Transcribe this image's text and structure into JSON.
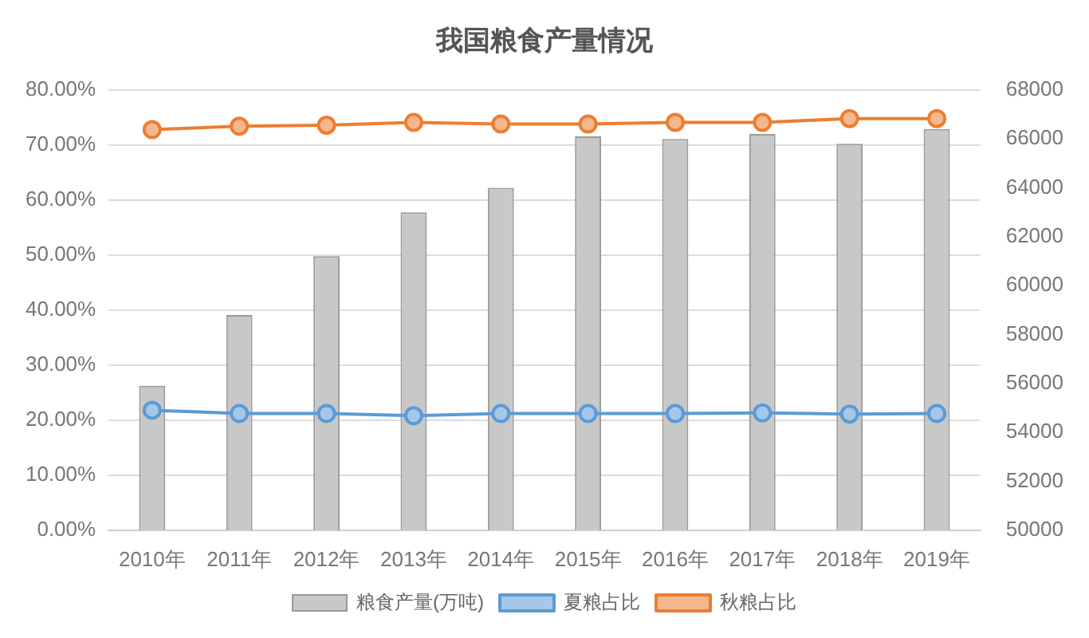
{
  "chart_data": {
    "type": "bar",
    "title": "我国粮食产量情况",
    "categories": [
      "2010年",
      "2011年",
      "2012年",
      "2013年",
      "2014年",
      "2015年",
      "2016年",
      "2017年",
      "2018年",
      "2019年"
    ],
    "series": [
      {
        "name": "粮食产量(万吨)",
        "axis": "y2",
        "color": "#c8c8c8",
        "values": [
          55900,
          58800,
          61200,
          63000,
          64000,
          66100,
          66000,
          66200,
          65800,
          66400
        ]
      },
      {
        "name": "夏粮占比",
        "type": "line",
        "color": "#5b9bd5",
        "values": [
          21.8,
          21.2,
          21.2,
          20.8,
          21.2,
          21.2,
          21.2,
          21.3,
          21.1,
          21.2
        ]
      },
      {
        "name": "秋粮占比",
        "type": "line",
        "color": "#ed7d31",
        "values": [
          72.8,
          73.4,
          73.6,
          74.1,
          73.8,
          73.8,
          74.1,
          74.1,
          74.8,
          74.8
        ]
      }
    ],
    "ylim": [
      0,
      80
    ],
    "yticks": [
      {
        "value": 0,
        "label": "0.00%"
      },
      {
        "value": 10,
        "label": "10.00%"
      },
      {
        "value": 20,
        "label": "20.00%"
      },
      {
        "value": 30,
        "label": "30.00%"
      },
      {
        "value": 40,
        "label": "40.00%"
      },
      {
        "value": 50,
        "label": "50.00%"
      },
      {
        "value": 60,
        "label": "60.00%"
      },
      {
        "value": 70,
        "label": "70.00%"
      },
      {
        "value": 80,
        "label": "80.00%"
      }
    ],
    "y2lim": [
      50000,
      68000
    ],
    "y2ticks": [
      50000,
      52000,
      54000,
      56000,
      58000,
      60000,
      62000,
      64000,
      66000,
      68000
    ],
    "grid": "y",
    "legend": "bottom",
    "marker": "circle",
    "line_style": "solid"
  }
}
